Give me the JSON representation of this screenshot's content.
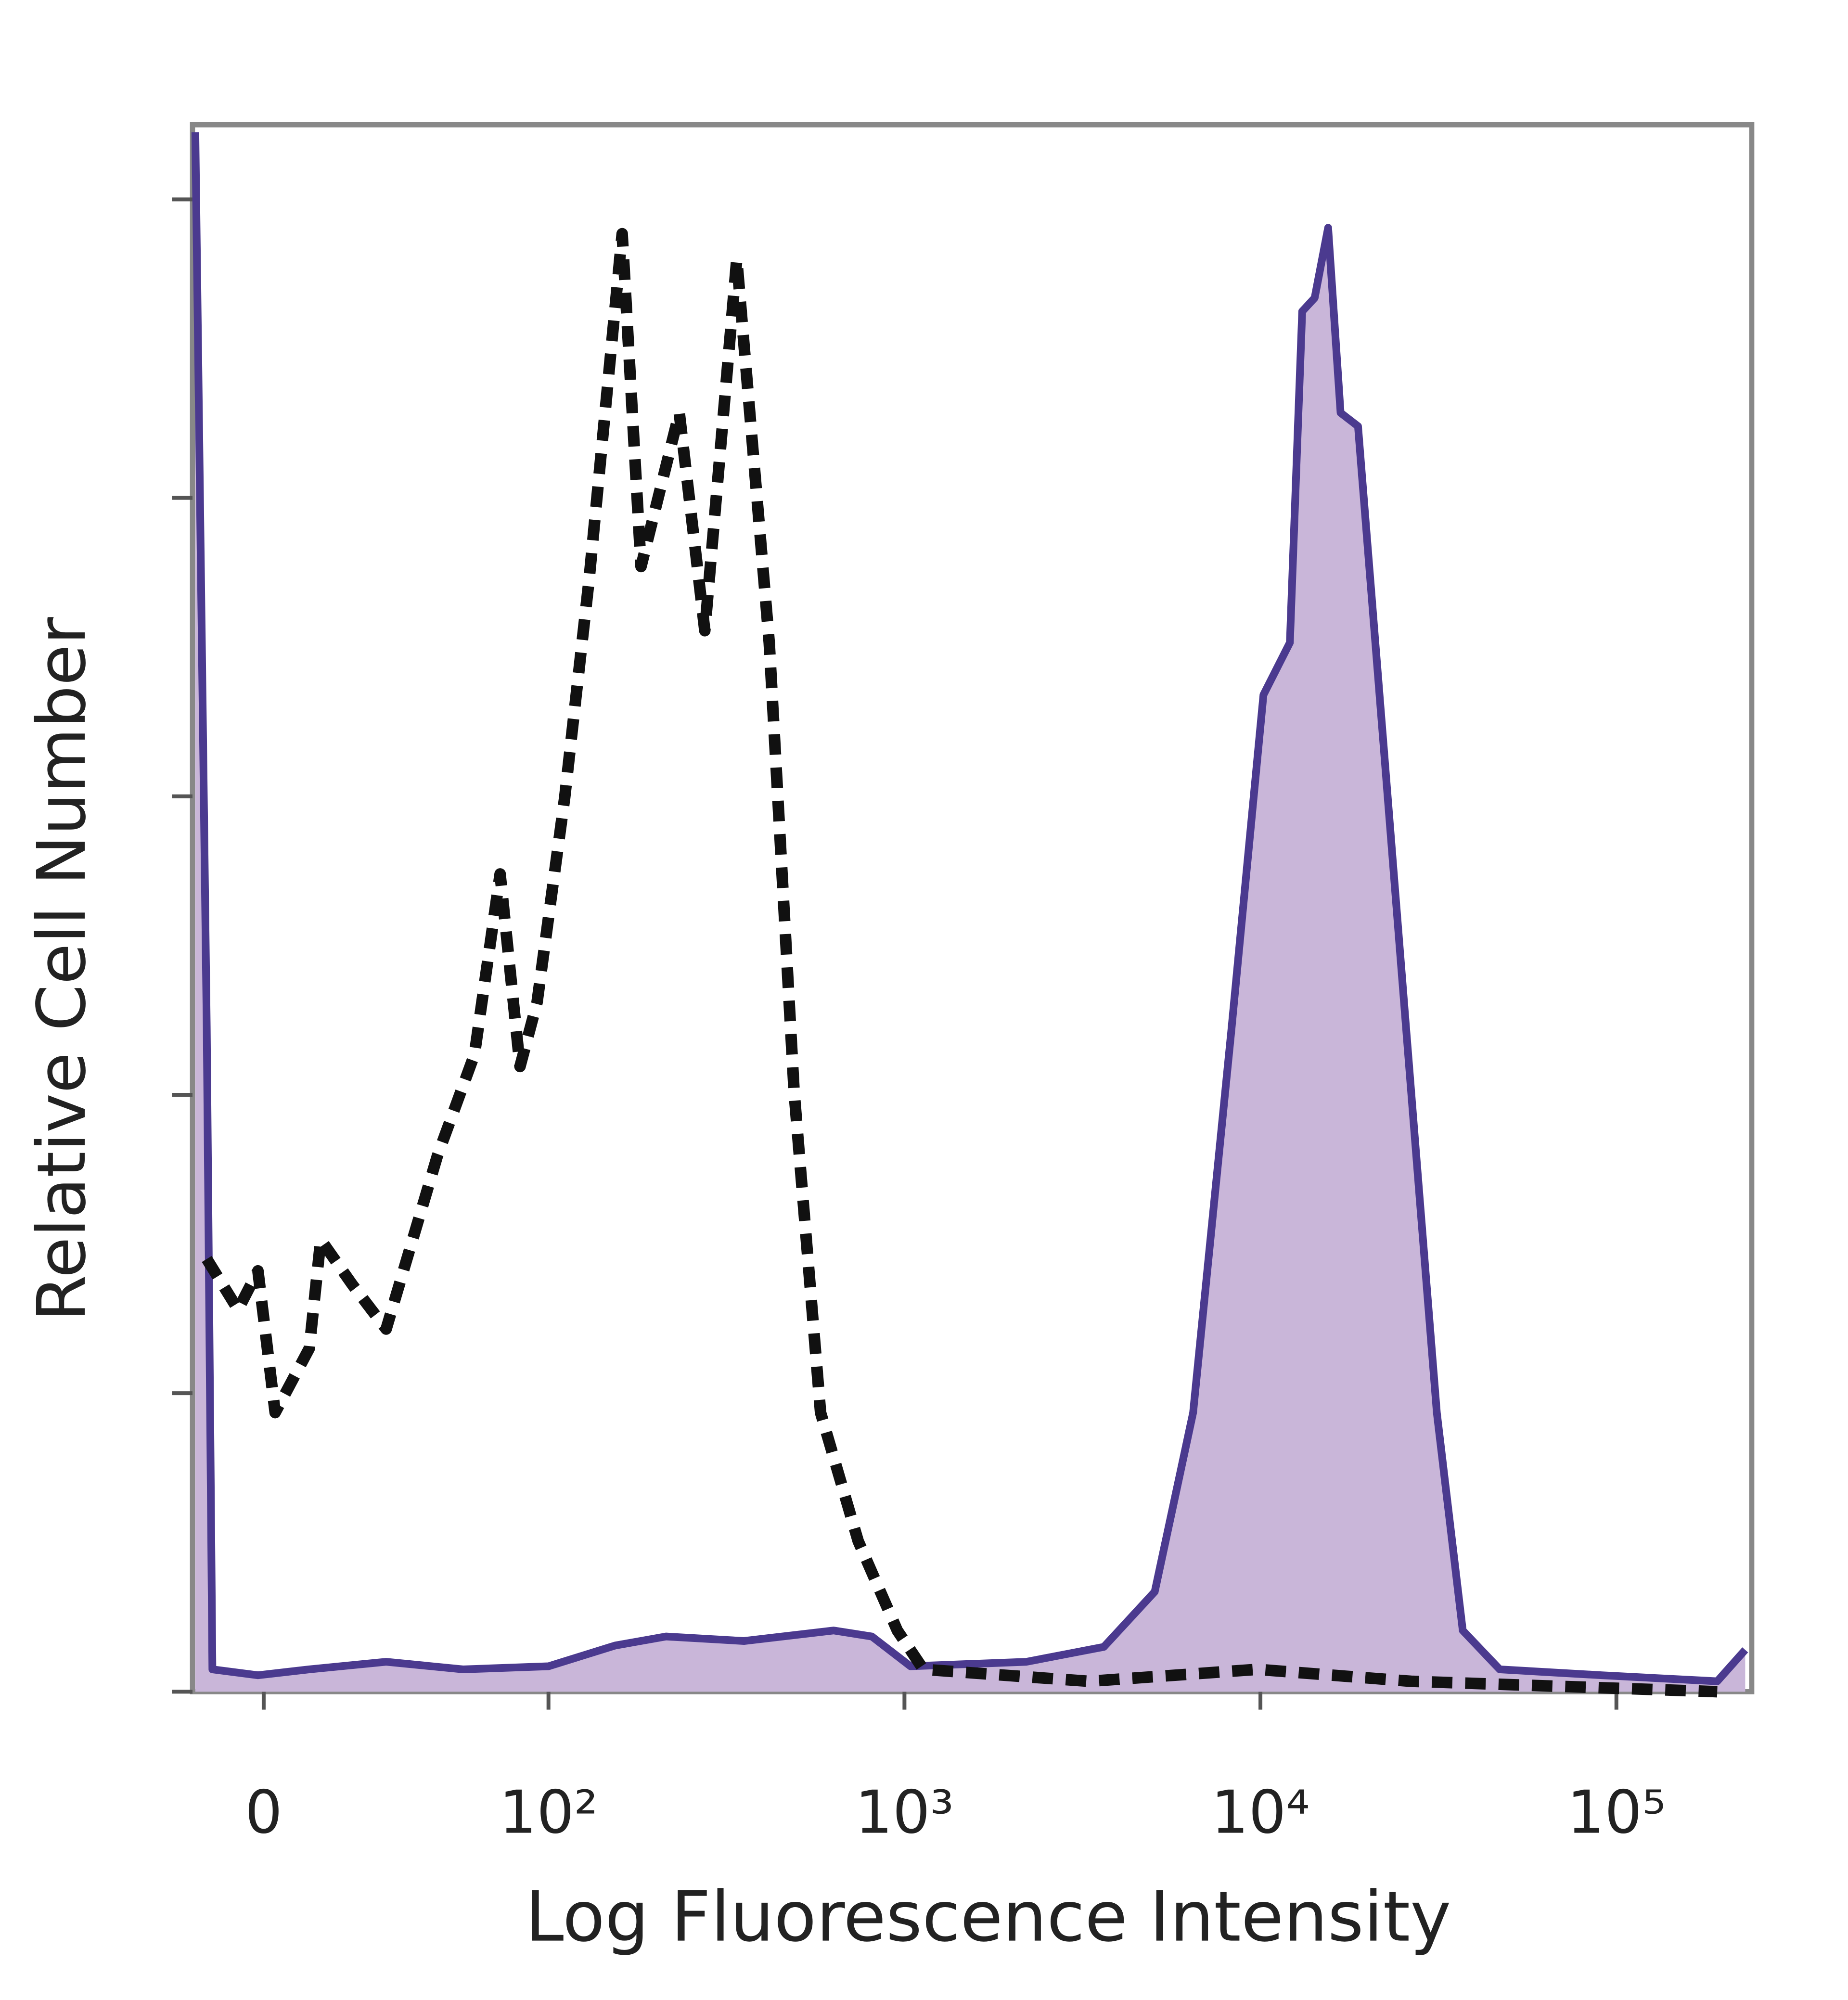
{
  "chart_data": {
    "type": "histogram-overlay",
    "x_axis_label": "Log Fluorescence Intensity",
    "y_axis_label": "Relative Cell Number",
    "xscale": "biexponential",
    "xlim": [
      -25,
      240000
    ],
    "xticks": [
      0,
      {
        "value": 100,
        "label": "10²"
      },
      {
        "value": 1000,
        "label": "10³"
      },
      {
        "value": 10000,
        "label": "10⁴"
      },
      {
        "value": 100000,
        "label": "10⁵"
      }
    ],
    "ylim": [
      0,
      105
    ],
    "yticks": [
      0,
      20,
      40,
      60,
      80,
      100
    ],
    "ytick_labels": false,
    "series": [
      {
        "color": "#4b3a8f",
        "fill": "#c9b6d9",
        "dash": false,
        "x": [
          -24,
          -20,
          -18,
          -2,
          16,
          43,
          70,
          100,
          154,
          214,
          354,
          632,
          810,
          1040,
          2200,
          3630,
          5050,
          6470,
          8300,
          10200,
          12100,
          13100,
          14200,
          15500,
          16800,
          18800,
          22500,
          26500,
          31300,
          37000,
          47000,
          91000,
          192000,
          230000
        ],
        "values": [
          104.5,
          44.5,
          1.5,
          1.1,
          1.5,
          2,
          1.5,
          1.7,
          3.1,
          3.7,
          3.4,
          4.1,
          3.7,
          1.7,
          2,
          3,
          6.7,
          18.7,
          44.5,
          66.8,
          70.3,
          92.5,
          93.4,
          98.1,
          85.7,
          84.8,
          61.6,
          40.2,
          18.7,
          4.1,
          1.5,
          1.1,
          0.7,
          2.8
        ]
      },
      {
        "color": "#111111",
        "dash": true,
        "x": [
          -20,
          -9,
          -2,
          4,
          16,
          20,
          31,
          43,
          61,
          74,
          83,
          90,
          96,
          111,
          130,
          161,
          182,
          233,
          275,
          338,
          417,
          490,
          581,
          741,
          955,
          1130,
          3300,
          9800,
          26500,
          192000
        ],
        "values": [
          29,
          25.6,
          28.2,
          18.7,
          23,
          30.3,
          27.3,
          24.3,
          35.9,
          42.7,
          54.8,
          41.9,
          46.2,
          59.9,
          74.5,
          97.7,
          75.4,
          85.7,
          71.1,
          96,
          70.3,
          40.2,
          18.7,
          10.1,
          4.1,
          1.5,
          0.7,
          1.5,
          0.7,
          0
        ]
      }
    ]
  }
}
